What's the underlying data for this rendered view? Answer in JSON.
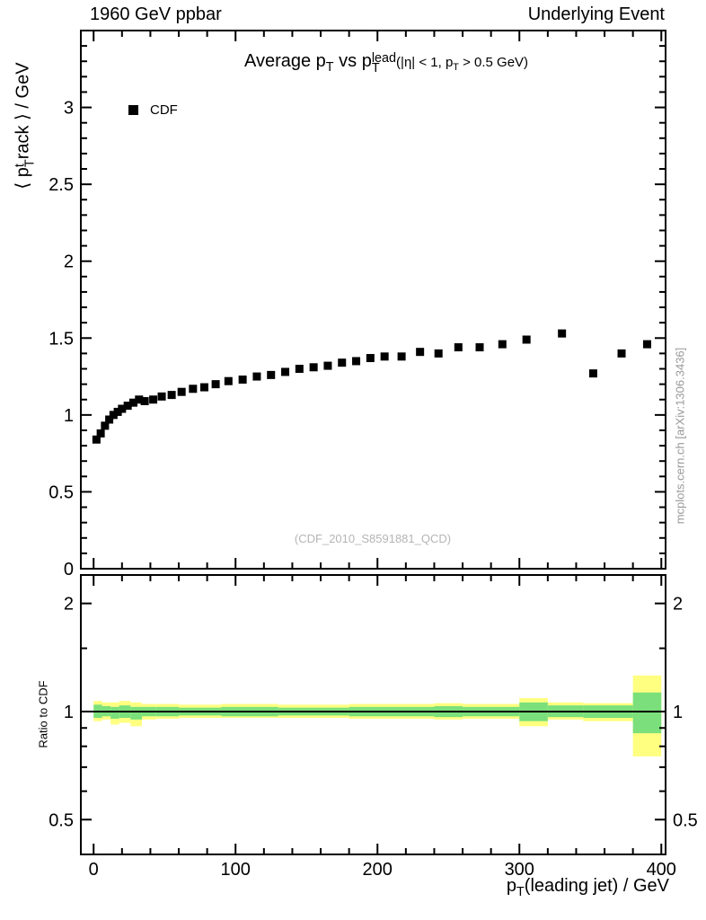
{
  "labels": {
    "header_left": "1960 GeV ppbar",
    "header_right": "Underlying Event",
    "title_a": "Average p",
    "title_sub_T1": "T",
    "title_b": " vs p",
    "title_sup_lead": "lead",
    "title_sub_T2": "T",
    "title_c": "(|η| < 1, p",
    "title_sub_T3": "T",
    "title_d": " > 0.5 GeV)",
    "legend_cdf": "CDF",
    "ylabel_a": "⟨ p",
    "ylabel_sup": "t",
    "ylabel_sub": "T",
    "ylabel_b": "rack ⟩ / GeV",
    "ratio_ylabel": "Ratio to CDF",
    "watermark": "(CDF_2010_S8591881_QCD)",
    "side_note": "mcplots.cern.ch [arXiv:1306.3436]",
    "xlabel_a": "p",
    "xlabel_sub": "T",
    "xlabel_b": "(leading jet) / GeV"
  },
  "chart_data": {
    "type": "scatter",
    "title": "Average pT vs pT^lead (|eta| < 1, pT > 0.5 GeV)",
    "xlabel": "pT(leading jet) / GeV",
    "ylabel": "<pT^track> / GeV",
    "legend_position": "top-left-inside",
    "grid": false,
    "xlim": [
      -9,
      403
    ],
    "ylim_main": [
      0,
      3.5
    ],
    "xticks": [
      0,
      100,
      200,
      300,
      400
    ],
    "x_minor_step": 20,
    "yticks_main": [
      0,
      0.5,
      1,
      1.5,
      2,
      2.5,
      3
    ],
    "y_minor_step": 0.1,
    "series": [
      {
        "name": "CDF",
        "marker": "filled-square",
        "color": "#000000",
        "x": [
          2,
          5,
          8,
          11,
          14,
          17,
          20,
          24,
          28,
          32,
          36,
          42,
          48,
          55,
          62,
          70,
          78,
          86,
          95,
          105,
          115,
          125,
          135,
          145,
          155,
          165,
          175,
          185,
          195,
          205,
          217,
          230,
          243,
          257,
          272,
          288,
          305,
          330,
          352,
          372,
          390
        ],
        "y": [
          0.84,
          0.88,
          0.93,
          0.97,
          1.0,
          1.02,
          1.04,
          1.06,
          1.08,
          1.1,
          1.09,
          1.1,
          1.12,
          1.13,
          1.15,
          1.17,
          1.18,
          1.2,
          1.22,
          1.23,
          1.25,
          1.26,
          1.28,
          1.3,
          1.31,
          1.32,
          1.34,
          1.35,
          1.37,
          1.38,
          1.38,
          1.41,
          1.4,
          1.44,
          1.44,
          1.46,
          1.49,
          1.53,
          1.27,
          1.4,
          1.46
        ]
      }
    ],
    "ratio": {
      "label": "Ratio to CDF",
      "scale": "log",
      "ylim": [
        0.4,
        2.4
      ],
      "yticks": [
        0.5,
        1,
        2
      ],
      "yticks_minor": [
        0.4,
        0.6,
        0.7,
        0.8,
        0.9,
        1.5
      ],
      "unity_line": 1,
      "band_outer_color": "#ffff80",
      "band_inner_color": "#7be07b",
      "bands": [
        {
          "x0": 0,
          "x1": 6,
          "outer": [
            0.94,
            1.07
          ],
          "inner": [
            0.96,
            1.045
          ]
        },
        {
          "x0": 6,
          "x1": 12,
          "outer": [
            0.95,
            1.06
          ],
          "inner": [
            0.97,
            1.035
          ]
        },
        {
          "x0": 12,
          "x1": 18,
          "outer": [
            0.92,
            1.06
          ],
          "inner": [
            0.955,
            1.03
          ]
        },
        {
          "x0": 18,
          "x1": 26,
          "outer": [
            0.93,
            1.07
          ],
          "inner": [
            0.96,
            1.04
          ]
        },
        {
          "x0": 26,
          "x1": 34,
          "outer": [
            0.91,
            1.06
          ],
          "inner": [
            0.95,
            1.03
          ]
        },
        {
          "x0": 34,
          "x1": 44,
          "outer": [
            0.95,
            1.05
          ],
          "inner": [
            0.97,
            1.03
          ]
        },
        {
          "x0": 44,
          "x1": 60,
          "outer": [
            0.955,
            1.05
          ],
          "inner": [
            0.97,
            1.03
          ]
        },
        {
          "x0": 60,
          "x1": 90,
          "outer": [
            0.96,
            1.045
          ],
          "inner": [
            0.975,
            1.025
          ]
        },
        {
          "x0": 90,
          "x1": 130,
          "outer": [
            0.96,
            1.05
          ],
          "inner": [
            0.97,
            1.03
          ]
        },
        {
          "x0": 130,
          "x1": 180,
          "outer": [
            0.96,
            1.045
          ],
          "inner": [
            0.975,
            1.025
          ]
        },
        {
          "x0": 180,
          "x1": 240,
          "outer": [
            0.955,
            1.05
          ],
          "inner": [
            0.97,
            1.03
          ]
        },
        {
          "x0": 240,
          "x1": 260,
          "outer": [
            0.95,
            1.055
          ],
          "inner": [
            0.965,
            1.035
          ]
        },
        {
          "x0": 260,
          "x1": 300,
          "outer": [
            0.955,
            1.05
          ],
          "inner": [
            0.97,
            1.03
          ]
        },
        {
          "x0": 300,
          "x1": 320,
          "outer": [
            0.91,
            1.09
          ],
          "inner": [
            0.94,
            1.06
          ]
        },
        {
          "x0": 320,
          "x1": 345,
          "outer": [
            0.95,
            1.06
          ],
          "inner": [
            0.965,
            1.04
          ]
        },
        {
          "x0": 345,
          "x1": 380,
          "outer": [
            0.94,
            1.055
          ],
          "inner": [
            0.96,
            1.04
          ]
        },
        {
          "x0": 380,
          "x1": 400,
          "outer": [
            0.75,
            1.26
          ],
          "inner": [
            0.87,
            1.13
          ]
        }
      ]
    }
  }
}
